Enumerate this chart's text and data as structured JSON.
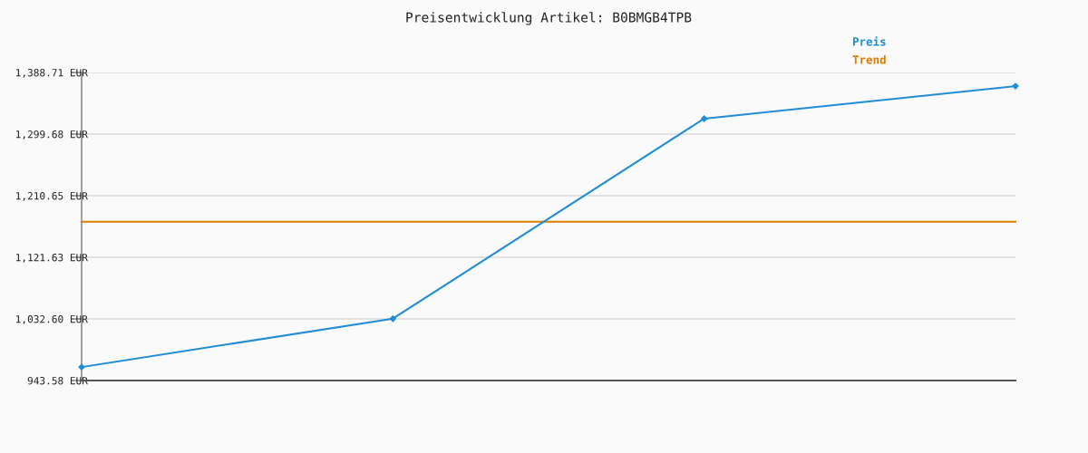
{
  "chart_data": {
    "type": "line",
    "title": "Preisentwicklung Artikel: B0BMGB4TPB",
    "categories": [
      null,
      null,
      null,
      null
    ],
    "series": [
      {
        "name": "Preis",
        "color": "#1f8dd6",
        "values": [
          963,
          1033,
          1322,
          1369
        ],
        "marker": "diamond"
      },
      {
        "name": "Trend",
        "color": "#e07b00",
        "values": [
          1173,
          1173,
          1173,
          1173
        ],
        "marker": "none"
      }
    ],
    "ylim": [
      943.58,
      1388.71
    ],
    "yticks": [
      {
        "value": 943.58,
        "label": "943.58 EUR"
      },
      {
        "value": 1032.6,
        "label": "1,032.60 EUR"
      },
      {
        "value": 1121.63,
        "label": "1,121.63 EUR"
      },
      {
        "value": 1210.65,
        "label": "1,210.65 EUR"
      },
      {
        "value": 1299.68,
        "label": "1,299.68 EUR"
      },
      {
        "value": 1388.71,
        "label": "1,388.71 EUR"
      }
    ],
    "grid": "y",
    "legend": "top right",
    "line_style": "solid"
  }
}
